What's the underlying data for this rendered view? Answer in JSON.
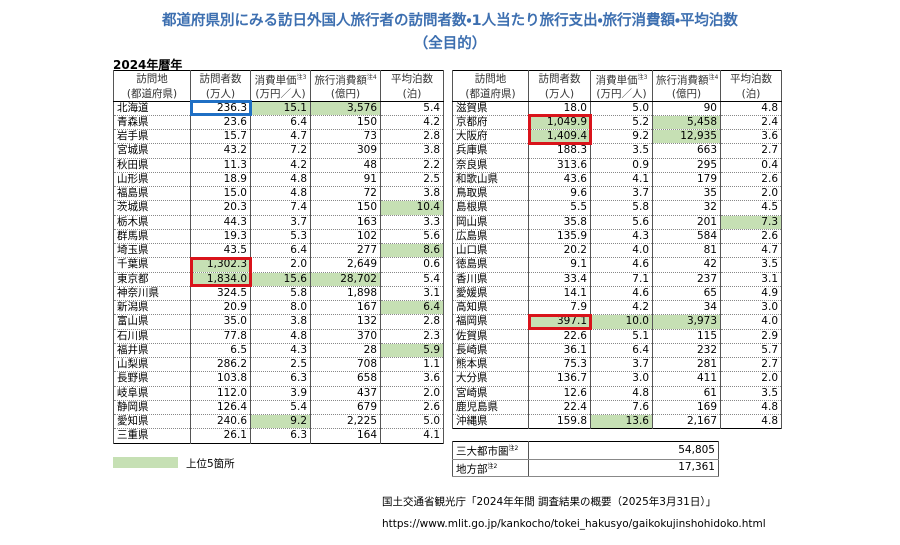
{
  "header": {
    "title": "都道府県別にみる訪日外国人旅行者の訪問者数・1人当たり旅行支出・旅行消費額・平均泊数",
    "subtitle": "（全目的）",
    "period": "2024年暦年"
  },
  "highlight_color": "#c6e0b4",
  "left_table": {
    "header": [
      {
        "main": "訪問地",
        "unit": "(都道府県)"
      },
      {
        "main": "訪問者数",
        "unit": "(万人)"
      },
      {
        "main": "消費単価",
        "note": "注3",
        "unit": "(万円／人)"
      },
      {
        "main": "旅行消費額",
        "note": "注4",
        "unit": "(億円)"
      },
      {
        "main": "平均泊数",
        "unit": "(泊)"
      }
    ],
    "rows": [
      [
        "北海道",
        "236.3",
        "15.1",
        "3,576",
        "5.4"
      ],
      [
        "青森県",
        "23.6",
        "6.4",
        "150",
        "4.2"
      ],
      [
        "岩手県",
        "15.7",
        "4.7",
        "73",
        "2.8"
      ],
      [
        "宮城県",
        "43.2",
        "7.2",
        "309",
        "3.8"
      ],
      [
        "秋田県",
        "11.3",
        "4.2",
        "48",
        "2.2"
      ],
      [
        "山形県",
        "18.9",
        "4.8",
        "91",
        "2.5"
      ],
      [
        "福島県",
        "15.0",
        "4.8",
        "72",
        "3.8"
      ],
      [
        "茨城県",
        "20.3",
        "7.4",
        "150",
        "10.4"
      ],
      [
        "栃木県",
        "44.3",
        "3.7",
        "163",
        "3.3"
      ],
      [
        "群馬県",
        "19.3",
        "5.3",
        "102",
        "5.6"
      ],
      [
        "埼玉県",
        "43.5",
        "6.4",
        "277",
        "8.6"
      ],
      [
        "千葉県",
        "1,302.3",
        "2.0",
        "2,649",
        "0.6"
      ],
      [
        "東京都",
        "1,834.0",
        "15.6",
        "28,702",
        "5.4"
      ],
      [
        "神奈川県",
        "324.5",
        "5.8",
        "1,898",
        "3.1"
      ],
      [
        "新潟県",
        "20.9",
        "8.0",
        "167",
        "6.4"
      ],
      [
        "富山県",
        "35.0",
        "3.8",
        "132",
        "2.8"
      ],
      [
        "石川県",
        "77.8",
        "4.8",
        "370",
        "2.3"
      ],
      [
        "福井県",
        "6.5",
        "4.3",
        "28",
        "5.9"
      ],
      [
        "山梨県",
        "286.2",
        "2.5",
        "708",
        "1.1"
      ],
      [
        "長野県",
        "103.8",
        "6.3",
        "658",
        "3.6"
      ],
      [
        "岐阜県",
        "112.0",
        "3.9",
        "437",
        "2.0"
      ],
      [
        "静岡県",
        "126.4",
        "5.4",
        "679",
        "2.6"
      ],
      [
        "愛知県",
        "240.6",
        "9.2",
        "2,225",
        "5.0"
      ],
      [
        "三重県",
        "26.1",
        "6.3",
        "164",
        "4.1"
      ]
    ],
    "highlight_cells": [
      [
        0,
        2
      ],
      [
        0,
        3
      ],
      [
        7,
        4
      ],
      [
        10,
        4
      ],
      [
        11,
        1
      ],
      [
        12,
        1
      ],
      [
        12,
        2
      ],
      [
        12,
        3
      ],
      [
        14,
        4
      ],
      [
        17,
        4
      ],
      [
        22,
        2
      ]
    ],
    "boxes": [
      {
        "rows": [
          0,
          0
        ],
        "col": 1,
        "color": "#1f6fc4"
      },
      {
        "rows": [
          11,
          12
        ],
        "col": 1,
        "color": "#d9141b"
      }
    ]
  },
  "right_table": {
    "header": [
      {
        "main": "訪問地",
        "unit": "(都道府県)"
      },
      {
        "main": "訪問者数",
        "unit": "(万人)"
      },
      {
        "main": "消費単価",
        "note": "注3",
        "unit": "(万円／人)"
      },
      {
        "main": "旅行消費額",
        "note": "注4",
        "unit": "(億円)"
      },
      {
        "main": "平均泊数",
        "unit": "(泊)"
      }
    ],
    "rows": [
      [
        "滋賀県",
        "18.0",
        "5.0",
        "90",
        "4.8"
      ],
      [
        "京都府",
        "1,049.9",
        "5.2",
        "5,458",
        "2.4"
      ],
      [
        "大阪府",
        "1,409.4",
        "9.2",
        "12,935",
        "3.6"
      ],
      [
        "兵庫県",
        "188.3",
        "3.5",
        "663",
        "2.7"
      ],
      [
        "奈良県",
        "313.6",
        "0.9",
        "295",
        "0.4"
      ],
      [
        "和歌山県",
        "43.6",
        "4.1",
        "179",
        "2.6"
      ],
      [
        "鳥取県",
        "9.6",
        "3.7",
        "35",
        "2.0"
      ],
      [
        "島根県",
        "5.5",
        "5.8",
        "32",
        "4.5"
      ],
      [
        "岡山県",
        "35.8",
        "5.6",
        "201",
        "7.3"
      ],
      [
        "広島県",
        "135.9",
        "4.3",
        "584",
        "2.6"
      ],
      [
        "山口県",
        "20.2",
        "4.0",
        "81",
        "4.7"
      ],
      [
        "徳島県",
        "9.1",
        "4.6",
        "42",
        "3.5"
      ],
      [
        "香川県",
        "33.4",
        "7.1",
        "237",
        "3.1"
      ],
      [
        "愛媛県",
        "14.1",
        "4.6",
        "65",
        "4.9"
      ],
      [
        "高知県",
        "7.9",
        "4.2",
        "34",
        "3.0"
      ],
      [
        "福岡県",
        "397.1",
        "10.0",
        "3,973",
        "4.0"
      ],
      [
        "佐賀県",
        "22.6",
        "5.1",
        "115",
        "2.9"
      ],
      [
        "長崎県",
        "36.1",
        "6.4",
        "232",
        "5.7"
      ],
      [
        "熊本県",
        "75.3",
        "3.7",
        "281",
        "2.7"
      ],
      [
        "大分県",
        "136.7",
        "3.0",
        "411",
        "2.0"
      ],
      [
        "宮崎県",
        "12.6",
        "4.8",
        "61",
        "3.5"
      ],
      [
        "鹿児島県",
        "22.4",
        "7.6",
        "169",
        "4.8"
      ],
      [
        "沖縄県",
        "159.8",
        "13.6",
        "2,167",
        "4.8"
      ]
    ],
    "highlight_cells": [
      [
        1,
        1
      ],
      [
        1,
        3
      ],
      [
        2,
        1
      ],
      [
        2,
        3
      ],
      [
        8,
        4
      ],
      [
        15,
        1
      ],
      [
        15,
        2
      ],
      [
        15,
        3
      ],
      [
        22,
        2
      ]
    ],
    "boxes": [
      {
        "rows": [
          1,
          2
        ],
        "col": 1,
        "color": "#d9141b"
      },
      {
        "rows": [
          15,
          15
        ],
        "col": 1,
        "color": "#d9141b"
      }
    ]
  },
  "summary": [
    {
      "label": "三大都市圏",
      "note": "注2",
      "value": "54,805"
    },
    {
      "label": "地方部",
      "note": "注2",
      "value": "17,361"
    }
  ],
  "legend": "上位5箇所",
  "source": {
    "citation": "国土交通省観光庁「2024年年間 調査結果の概要（2025年3月31日）」",
    "url": "https://www.mlit.go.jp/kankocho/tokei_hakusyo/gaikokujinshohidoko.html"
  }
}
